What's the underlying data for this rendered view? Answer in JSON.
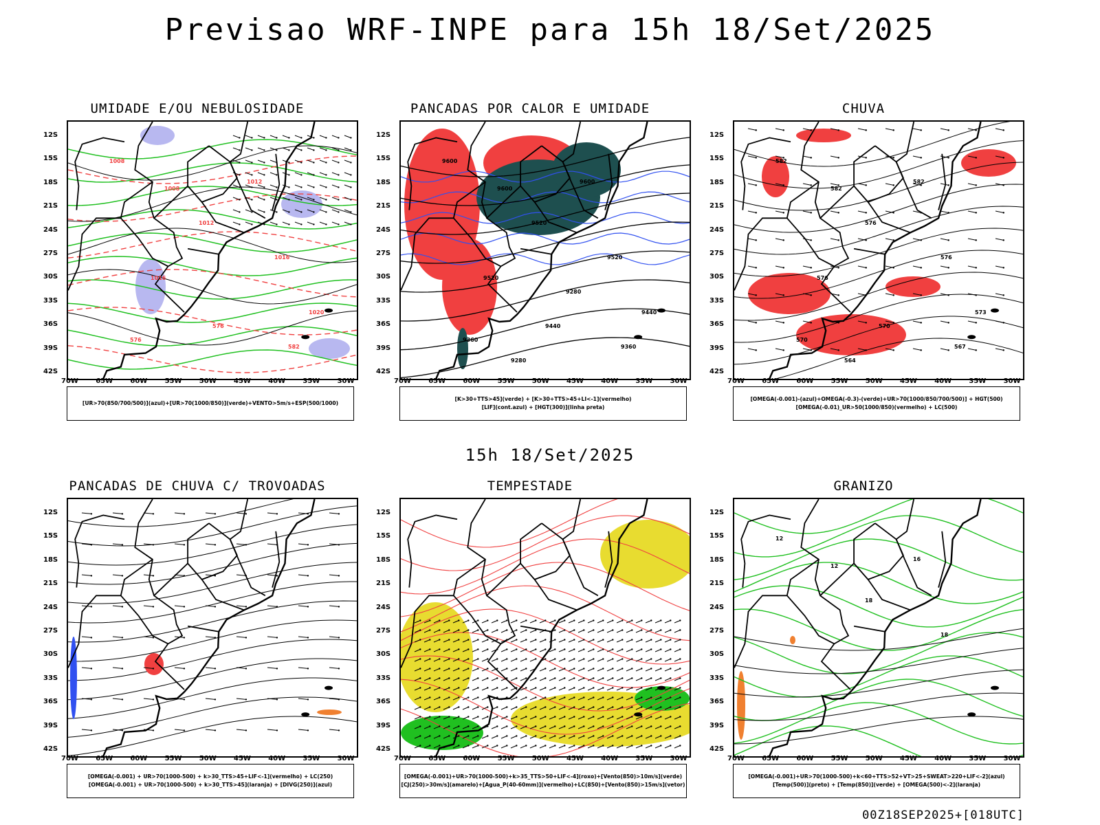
{
  "title": "Previsao WRF-INPE  para 15h 18/Set/2025",
  "mid_title": "15h 18/Set/2025",
  "footer": "00Z18SEP2025+[018UTC]",
  "lat_labels": [
    "12S",
    "15S",
    "18S",
    "21S",
    "24S",
    "27S",
    "30S",
    "33S",
    "36S",
    "39S",
    "42S"
  ],
  "lon_labels": [
    "70W",
    "65W",
    "60W",
    "55W",
    "50W",
    "45W",
    "40W",
    "35W",
    "30W"
  ],
  "panels": [
    {
      "title": "UMIDADE E/OU NEBULOSIDADE",
      "legend": [
        "[UR>70(850/700/500)](azul)+[UR>70(1000/850)](verde)+VENTO>5m/s+ESP(500/1000)"
      ],
      "contour_labels": [
        "1008",
        "1008",
        "1012",
        "1012",
        "1016",
        "1016",
        "1020",
        "576",
        "576",
        "582"
      ],
      "fills": [
        {
          "color": "#b8b8f0",
          "name": "ur-850-700-500"
        }
      ],
      "line_colors": {
        "isobar": "#000000",
        "thickness": "#f04040",
        "ur_low": "#20c020"
      }
    },
    {
      "title": "PANCADAS POR CALOR E UMIDADE",
      "legend": [
        "[K>30+TTS>45](verde) + [K>30+TTS>45+LI<-1](vermelho)",
        "[LIF](cont.azul) + [HGT(300)](linha preta)"
      ],
      "contour_labels": [
        "9600",
        "9600",
        "9600",
        "9520",
        "9520",
        "9520",
        "9440",
        "9440",
        "9360",
        "9360",
        "9280",
        "9280"
      ],
      "fills": [
        {
          "color": "#f04040",
          "name": "k-tts-li"
        },
        {
          "color": "#1e4f4f",
          "name": "k-tts"
        }
      ],
      "line_colors": {
        "lif": "#3050f0",
        "hgt": "#000000"
      }
    },
    {
      "title": "CHUVA",
      "legend": [
        "[OMEGA(-0.001)-(azul)+OMEGA(-0.3)-(verde)+UR>70(1000/850/700/500)] + HGT(500)",
        "[OMEGA(-0.01)_UR>50(1000/850)(vermelho) + LC(500)"
      ],
      "contour_labels": [
        "582",
        "582",
        "582",
        "576",
        "576",
        "576",
        "573",
        "570",
        "570",
        "567",
        "564"
      ],
      "fills": [
        {
          "color": "#f04040",
          "name": "omega-ur"
        }
      ],
      "line_colors": {
        "hgt": "#000000"
      }
    },
    {
      "title": "PANCADAS DE CHUVA C/ TROVOADAS",
      "legend": [
        "[OMEGA(-0.001) + UR>70(1000-500) + k>30_TTS>45+LIF<-1](vermelho) + LC(250)",
        "[OMEGA(-0.001) + UR>70(1000-500) + k>30_TTS>45](laranja) + [DIVG(250)](azul)"
      ],
      "contour_labels": [],
      "fills": [
        {
          "color": "#3050f0",
          "name": "divg"
        },
        {
          "color": "#f04040",
          "name": "trovoada"
        },
        {
          "color": "#f08030",
          "name": "laranja"
        }
      ],
      "line_colors": {
        "streamline": "#000000"
      }
    },
    {
      "title": "TEMPESTADE",
      "legend": [
        "[OMEGA(-0.001)+UR>70(1000-500)+k>35_TTS>50+LIF<-4](roxo)+[Vento(850)>10m/s](verde)",
        "[CJ(250)>30m/s](amarelo)+[Agua_P(40-60mm)](vermelho)+LC(850)+[Vento(850)>15m/s](vetor)"
      ],
      "contour_labels": [],
      "fills": [
        {
          "color": "#e8dc30",
          "name": "jato"
        },
        {
          "color": "#20c020",
          "name": "vento-850"
        }
      ],
      "line_colors": {
        "agua": "#f04040"
      }
    },
    {
      "title": "GRANIZO",
      "legend": [
        "[OMEGA(-0.001)+UR>70(1000-500)+k<60+TTS>52+VT>25+SWEAT>220+LIF<-2](azul)",
        "[Temp(500)](preto) + [Temp(850)](verde) + [OMEGA(500)<-2](laranja)"
      ],
      "contour_labels": [
        "12",
        "12",
        "16",
        "18",
        "18"
      ],
      "fills": [
        {
          "color": "#f08030",
          "name": "omega-500"
        }
      ],
      "line_colors": {
        "temp500": "#000000",
        "temp850": "#20c020"
      }
    }
  ]
}
